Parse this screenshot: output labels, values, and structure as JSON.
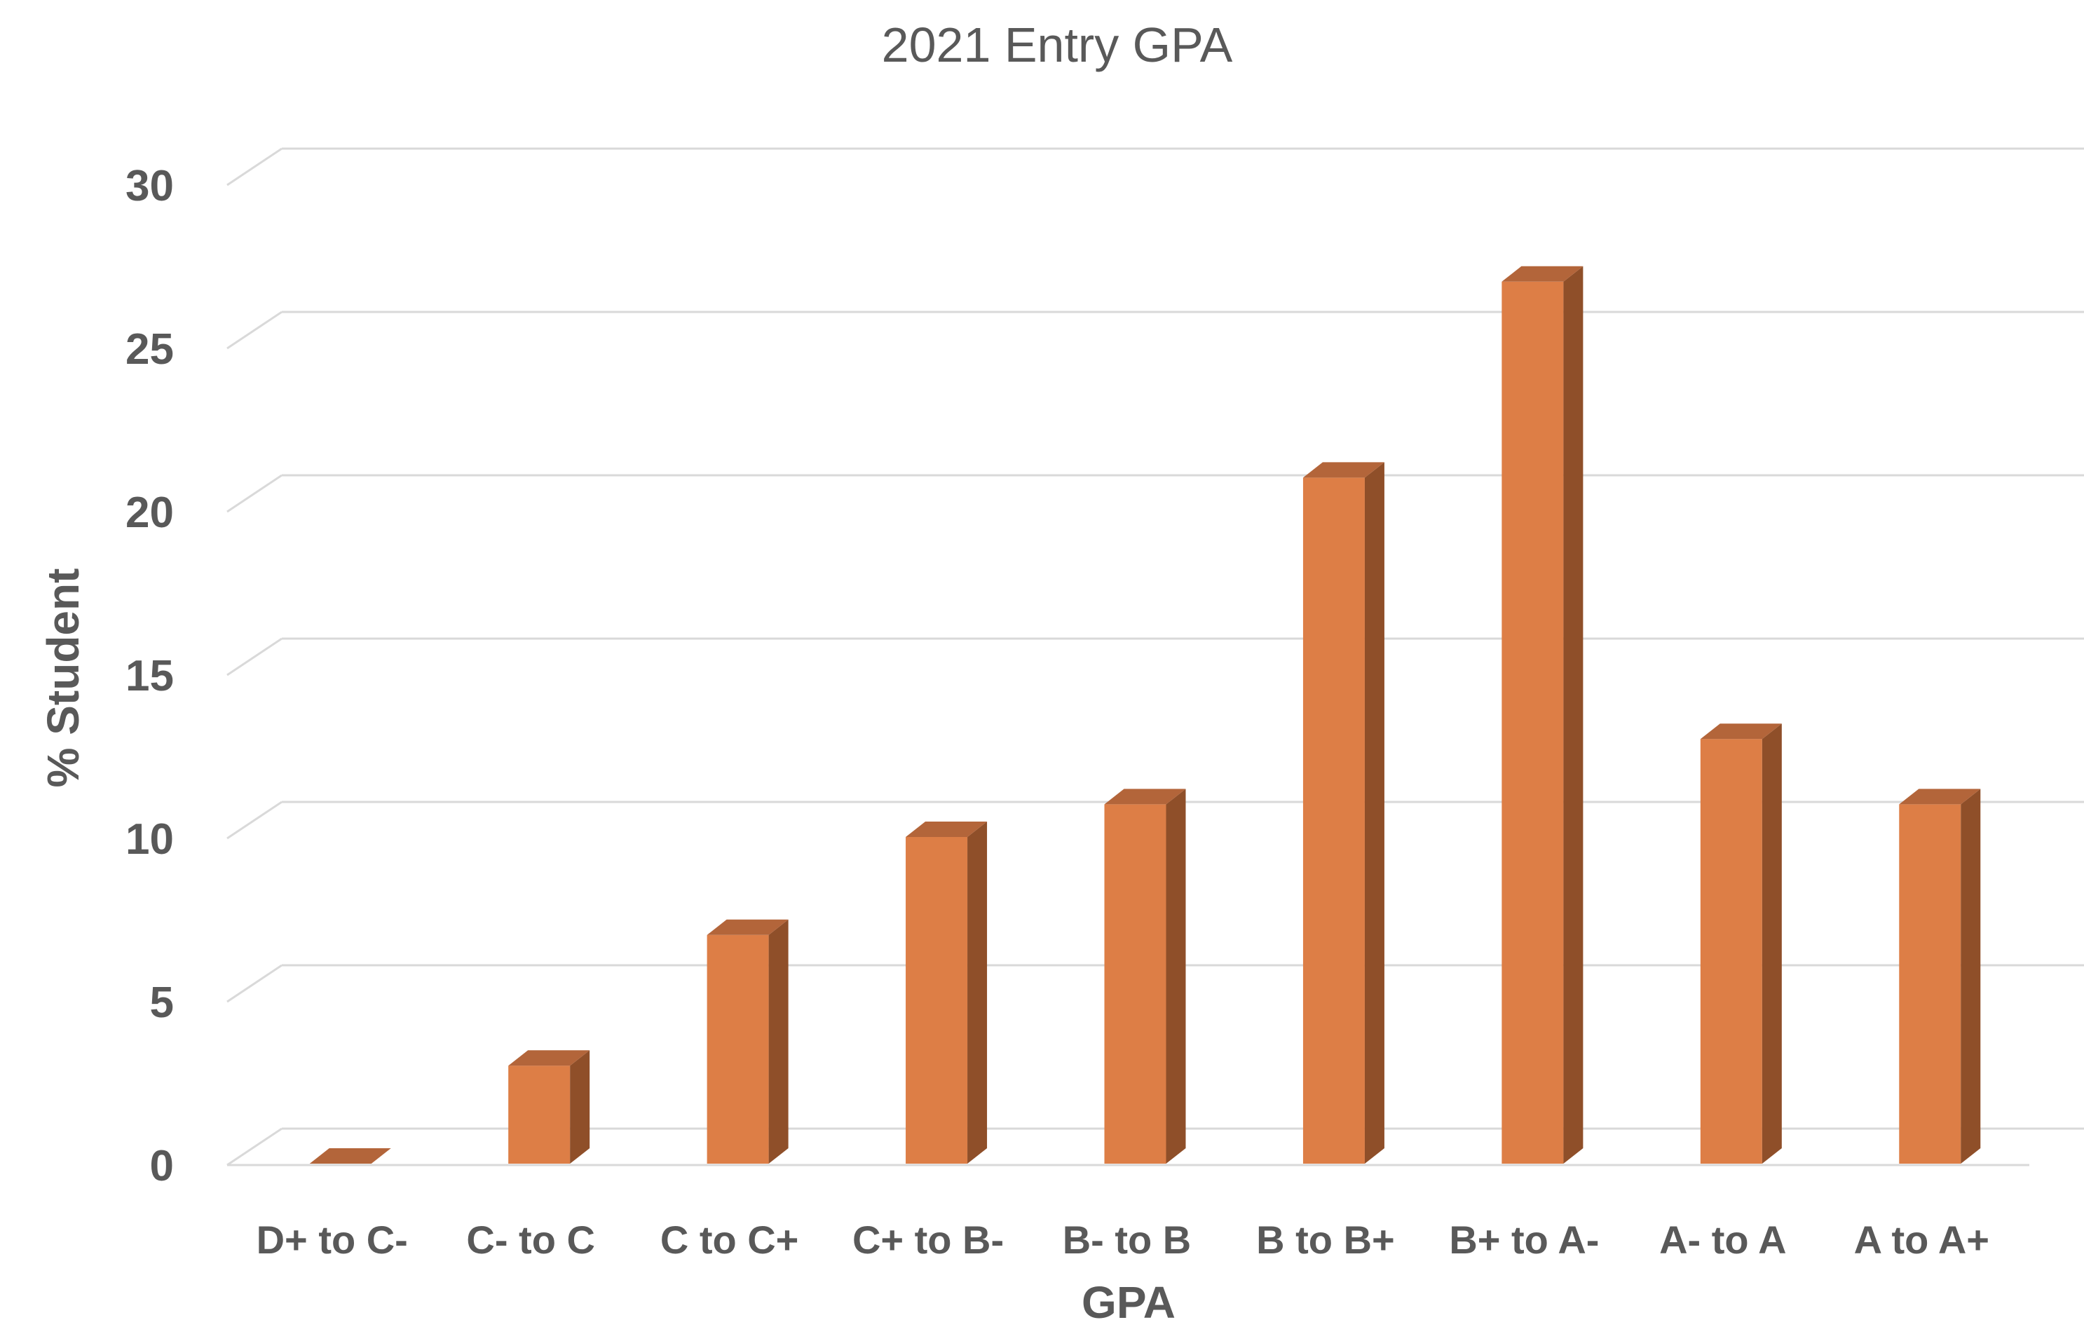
{
  "chart_data": {
    "type": "bar",
    "title": "2021 Entry GPA",
    "xlabel": "GPA",
    "ylabel": "% Student",
    "categories": [
      "D+ to C-",
      "C- to C",
      "C to C+",
      "C+ to B-",
      "B- to B",
      "B to B+",
      "B+ to A-",
      "A- to A",
      "A to A+"
    ],
    "values": [
      0,
      3,
      7,
      10,
      11,
      21,
      27,
      13,
      11
    ],
    "ylim": [
      0,
      30
    ],
    "yticks": [
      "0",
      "5",
      "10",
      "15",
      "20",
      "25",
      "30"
    ],
    "grid": true,
    "legend": "none",
    "style": "3d-column",
    "colors": {
      "front": "#dd7e46",
      "side": "#8f4f29",
      "top": "#b3653a",
      "grid": "#d9d9d9",
      "text": "#595959"
    }
  }
}
